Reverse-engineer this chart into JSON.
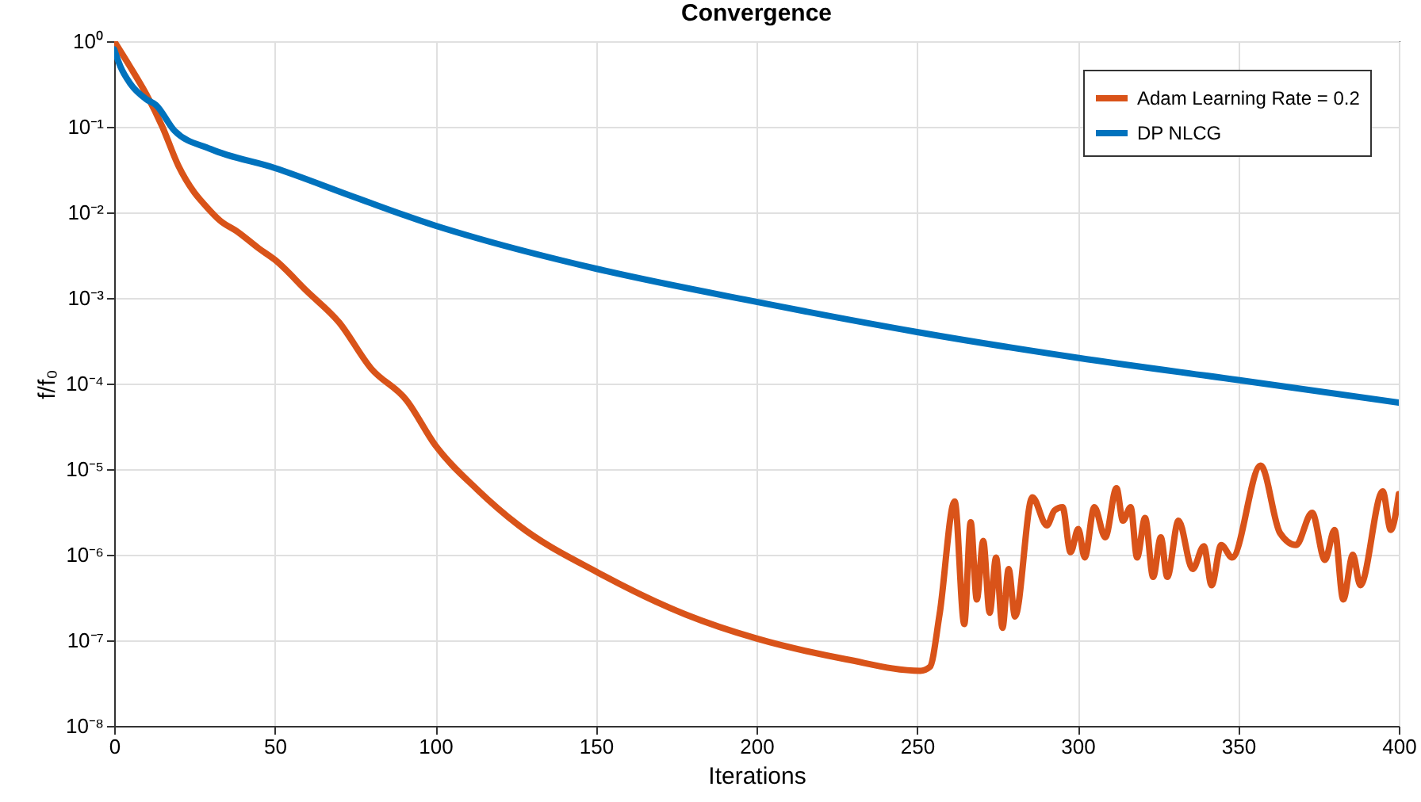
{
  "chart_data": {
    "type": "line",
    "title": "Convergence",
    "xlabel": "Iterations",
    "ylabel": "f/f₀",
    "log": "y",
    "xlim": [
      0,
      400
    ],
    "xticks": [
      0,
      50,
      100,
      150,
      200,
      250,
      300,
      350,
      400
    ],
    "ylim": [
      1e-08,
      1
    ],
    "yticks": [
      {
        "value": 1e-08,
        "label": "10⁻⁸"
      },
      {
        "value": 1e-07,
        "label": "10⁻⁷"
      },
      {
        "value": 1e-06,
        "label": "10⁻⁶"
      },
      {
        "value": 1e-05,
        "label": "10⁻⁵"
      },
      {
        "value": 0.0001,
        "label": "10⁻⁴"
      },
      {
        "value": 0.001,
        "label": "10⁻³"
      },
      {
        "value": 0.01,
        "label": "10⁻²"
      },
      {
        "value": 0.1,
        "label": "10⁻¹"
      },
      {
        "value": 1,
        "label": "10⁰"
      }
    ],
    "grid": true,
    "legend": "top right",
    "series": [
      {
        "name": "Adam Learning Rate = 0.2",
        "color": "#d95319",
        "x": [
          0,
          5,
          10,
          15,
          20,
          25,
          28,
          33,
          38.5,
          45,
          50,
          60,
          70,
          80,
          91,
          100,
          113,
          126,
          150.6,
          178,
          200,
          228,
          251,
          254,
          257,
          261.7,
          264.7,
          266.7,
          268.6,
          270.6,
          272.6,
          274.6,
          276.6,
          278.5,
          280.5,
          285.9,
          290.4,
          292.8,
          295.3,
          297.8,
          300.2,
          302.2,
          305.2,
          308.6,
          312.1,
          314.1,
          316.5,
          318.5,
          321,
          323.5,
          325.9,
          327.9,
          331.4,
          335.8,
          339.3,
          341.7,
          344.7,
          348.1,
          357,
          363,
          368,
          373,
          377,
          380,
          382.7,
          385.7,
          388,
          395,
          397.5,
          400
        ],
        "values": [
          1.0,
          0.5,
          0.24,
          0.1,
          0.035,
          0.017,
          0.0125,
          0.008,
          0.0059,
          0.0038,
          0.0028,
          0.0012,
          0.00052,
          0.00015,
          6.4e-05,
          1.9e-05,
          5.8e-06,
          2.2e-06,
          6.2e-07,
          2e-07,
          1.05e-07,
          6e-08,
          4.4e-08,
          4.9e-08,
          2e-07,
          4.2e-06,
          1.55e-07,
          2.4e-06,
          3e-07,
          1.45e-06,
          2.1e-07,
          9.3e-07,
          1.4e-07,
          6.8e-07,
          1.9e-07,
          4.7e-06,
          2.2e-06,
          3.3e-06,
          3.6e-06,
          1.07e-06,
          2e-06,
          9.3e-07,
          3.6e-06,
          1.6e-06,
          6e-06,
          2.5e-06,
          3.6e-06,
          9.3e-07,
          2.7e-06,
          5.5e-07,
          1.6e-06,
          5.5e-07,
          2.5e-06,
          6.8e-07,
          1.26e-06,
          4.4e-07,
          1.3e-06,
          9.3e-07,
          1.1e-05,
          1.8e-06,
          1.3e-06,
          3.1e-06,
          8.7e-07,
          1.95e-06,
          3e-07,
          1e-06,
          4.4e-07,
          5.5e-06,
          1.95e-06,
          5.1e-06
        ]
      },
      {
        "name": "DP NLCG",
        "color": "#0072bd",
        "x": [
          0,
          2,
          5,
          10,
          13,
          18.8,
          30,
          50,
          75,
          100,
          113,
          150,
          200,
          250,
          300,
          350,
          400
        ],
        "values": [
          0.8,
          0.5,
          0.32,
          0.21,
          0.18,
          0.09,
          0.055,
          0.033,
          0.015,
          0.007,
          0.005,
          0.0022,
          0.0009,
          0.0004,
          0.0002,
          0.00011,
          6e-05
        ]
      }
    ]
  }
}
